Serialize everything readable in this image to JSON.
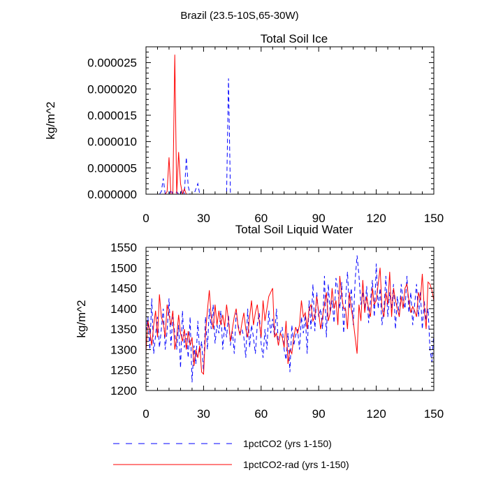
{
  "figure_title": "Brazil (23.5-10S,65-30W)",
  "colors": {
    "series_1": "#0000ff",
    "series_2": "#ff0000",
    "axis": "#000000"
  },
  "legend": {
    "placement": "bottom",
    "items": [
      {
        "label": "1pctCO2 (yrs 1-150)",
        "color": "#0000ff",
        "style": "dashed"
      },
      {
        "label": "1pctCO2-rad (yrs 1-150)",
        "color": "#ff0000",
        "style": "solid"
      }
    ]
  },
  "chart_data": [
    {
      "type": "line",
      "title": "Total Soil Ice",
      "xlabel": "",
      "ylabel": "kg/m^2",
      "xlim": [
        0,
        150
      ],
      "ylim": [
        0,
        2.8e-05
      ],
      "xticks": [
        0,
        30,
        60,
        90,
        120,
        150
      ],
      "xtick_labels": [
        "0",
        "30",
        "60",
        "90",
        "120",
        "150"
      ],
      "yticks": [
        0,
        5e-06,
        1e-05,
        1.5e-05,
        2e-05,
        2.5e-05
      ],
      "ytick_labels": [
        "0.000000",
        "0.000005",
        "0.000010",
        "0.000015",
        "0.000020",
        "0.000025"
      ],
      "grid": false,
      "series": [
        {
          "name": "1pctCO2 (yrs 1-150)",
          "style": "dashed",
          "color": "#0000ff",
          "x": [
            0,
            1,
            2,
            3,
            4,
            5,
            6,
            7,
            8,
            9,
            10,
            11,
            12,
            13,
            14,
            15,
            16,
            17,
            18,
            19,
            20,
            21,
            22,
            23,
            24,
            25,
            26,
            27,
            28,
            29,
            30,
            31,
            32,
            33,
            34,
            35,
            36,
            37,
            38,
            39,
            40,
            41,
            42,
            43,
            44,
            45,
            46,
            47,
            48,
            49,
            50,
            60,
            70,
            80,
            90,
            100,
            110,
            120,
            130,
            140,
            150
          ],
          "y": [
            0,
            0,
            0,
            0,
            0,
            0,
            0,
            0,
            5e-07,
            3e-06,
            0,
            0,
            0,
            8e-07,
            0,
            0,
            5e-07,
            0,
            0,
            1e-06,
            0,
            7e-06,
            1.5e-06,
            0,
            0,
            0,
            1e-06,
            2e-06,
            0,
            0,
            0,
            0,
            0,
            0,
            0,
            0,
            0,
            0,
            0,
            0,
            0,
            0,
            0,
            2.2e-05,
            0,
            0,
            0,
            0,
            0,
            0,
            0,
            0,
            0,
            0,
            0,
            0,
            0,
            0,
            0,
            0,
            0
          ]
        },
        {
          "name": "1pctCO2-rad (yrs 1-150)",
          "style": "solid",
          "color": "#ff0000",
          "x": [
            0,
            1,
            2,
            3,
            4,
            5,
            6,
            7,
            8,
            9,
            10,
            11,
            12,
            13,
            14,
            15,
            16,
            17,
            18,
            19,
            20,
            21,
            22,
            23,
            24,
            25,
            30,
            40,
            50,
            60,
            70,
            80,
            90,
            100,
            110,
            120,
            130,
            140,
            150
          ],
          "y": [
            0,
            0,
            0,
            0,
            0,
            0,
            0,
            0,
            0,
            0,
            0,
            5e-07,
            7e-06,
            0,
            0,
            2.65e-05,
            0,
            8e-06,
            2e-06,
            0,
            1e-06,
            0,
            0,
            0,
            0,
            0,
            0,
            0,
            0,
            0,
            0,
            0,
            0,
            0,
            0,
            0,
            0,
            0,
            0
          ]
        }
      ]
    },
    {
      "type": "line",
      "title": "Total Soil Liquid Water",
      "xlabel": "",
      "ylabel": "kg/m^2",
      "xlim": [
        0,
        150
      ],
      "ylim": [
        1200,
        1550
      ],
      "xticks": [
        0,
        30,
        60,
        90,
        120,
        150
      ],
      "xtick_labels": [
        "0",
        "30",
        "60",
        "90",
        "120",
        "150"
      ],
      "yticks": [
        1200,
        1250,
        1300,
        1350,
        1400,
        1450,
        1500,
        1550
      ],
      "ytick_labels": [
        "1200",
        "1250",
        "1300",
        "1350",
        "1400",
        "1450",
        "1500",
        "1550"
      ],
      "grid": false,
      "series": [
        {
          "name": "1pctCO2 (yrs 1-150)",
          "style": "dashed",
          "color": "#0000ff",
          "x": [
            0,
            1,
            2,
            3,
            4,
            5,
            6,
            7,
            8,
            9,
            10,
            11,
            12,
            13,
            14,
            15,
            16,
            17,
            18,
            19,
            20,
            21,
            22,
            23,
            24,
            25,
            26,
            27,
            28,
            29,
            30,
            31,
            32,
            33,
            34,
            35,
            36,
            37,
            38,
            39,
            40,
            41,
            42,
            43,
            44,
            45,
            46,
            47,
            48,
            49,
            50,
            51,
            52,
            53,
            54,
            55,
            56,
            57,
            58,
            59,
            60,
            61,
            62,
            63,
            64,
            65,
            66,
            67,
            68,
            69,
            70,
            71,
            72,
            73,
            74,
            75,
            76,
            77,
            78,
            79,
            80,
            81,
            82,
            83,
            84,
            85,
            86,
            87,
            88,
            89,
            90,
            91,
            92,
            93,
            94,
            95,
            96,
            97,
            98,
            99,
            100,
            101,
            102,
            103,
            104,
            105,
            106,
            107,
            108,
            109,
            110,
            111,
            112,
            113,
            114,
            115,
            116,
            117,
            118,
            119,
            120,
            121,
            122,
            123,
            124,
            125,
            126,
            127,
            128,
            129,
            130,
            131,
            132,
            133,
            134,
            135,
            136,
            137,
            138,
            139,
            140,
            141,
            142,
            143,
            144,
            145,
            146,
            147,
            148,
            149,
            150
          ],
          "y": [
            1345,
            1380,
            1300,
            1425,
            1290,
            1335,
            1380,
            1305,
            1350,
            1400,
            1300,
            1345,
            1425,
            1310,
            1380,
            1340,
            1300,
            1360,
            1255,
            1395,
            1305,
            1340,
            1280,
            1380,
            1220,
            1310,
            1265,
            1370,
            1290,
            1320,
            1245,
            1380,
            1300,
            1400,
            1350,
            1410,
            1315,
            1360,
            1340,
            1395,
            1300,
            1360,
            1330,
            1385,
            1310,
            1345,
            1290,
            1390,
            1360,
            1340,
            1350,
            1330,
            1280,
            1400,
            1305,
            1360,
            1330,
            1290,
            1360,
            1390,
            1315,
            1280,
            1350,
            1300,
            1395,
            1340,
            1375,
            1330,
            1400,
            1310,
            1340,
            1355,
            1300,
            1275,
            1340,
            1245,
            1360,
            1310,
            1335,
            1350,
            1300,
            1380,
            1340,
            1385,
            1290,
            1420,
            1350,
            1460,
            1345,
            1440,
            1380,
            1400,
            1350,
            1480,
            1330,
            1460,
            1390,
            1420,
            1365,
            1475,
            1445,
            1400,
            1465,
            1340,
            1420,
            1490,
            1400,
            1450,
            1360,
            1470,
            1530,
            1480,
            1410,
            1440,
            1395,
            1455,
            1365,
            1420,
            1470,
            1380,
            1510,
            1400,
            1450,
            1360,
            1400,
            1480,
            1380,
            1440,
            1400,
            1460,
            1350,
            1430,
            1380,
            1460,
            1420,
            1400,
            1480,
            1390,
            1440,
            1360,
            1410,
            1460,
            1380,
            1440,
            1350,
            1420,
            1370,
            1400,
            1300,
            1270,
            1340
          ]
        },
        {
          "name": "1pctCO2-rad (yrs 1-150)",
          "style": "solid",
          "color": "#ff0000",
          "x": [
            0,
            1,
            2,
            3,
            4,
            5,
            6,
            7,
            8,
            9,
            10,
            11,
            12,
            13,
            14,
            15,
            16,
            17,
            18,
            19,
            20,
            21,
            22,
            23,
            24,
            25,
            26,
            27,
            28,
            29,
            30,
            31,
            32,
            33,
            34,
            35,
            36,
            37,
            38,
            39,
            40,
            41,
            42,
            43,
            44,
            45,
            46,
            47,
            48,
            49,
            50,
            51,
            52,
            53,
            54,
            55,
            56,
            57,
            58,
            59,
            60,
            61,
            62,
            63,
            64,
            65,
            66,
            67,
            68,
            69,
            70,
            71,
            72,
            73,
            74,
            75,
            76,
            77,
            78,
            79,
            80,
            81,
            82,
            83,
            84,
            85,
            86,
            87,
            88,
            89,
            90,
            91,
            92,
            93,
            94,
            95,
            96,
            97,
            98,
            99,
            100,
            101,
            102,
            103,
            104,
            105,
            106,
            107,
            108,
            109,
            110,
            111,
            112,
            113,
            114,
            115,
            116,
            117,
            118,
            119,
            120,
            121,
            122,
            123,
            124,
            125,
            126,
            127,
            128,
            129,
            130,
            131,
            132,
            133,
            134,
            135,
            136,
            137,
            138,
            139,
            140,
            141,
            142,
            143,
            144,
            145,
            146,
            147,
            148,
            149,
            150
          ],
          "y": [
            1295,
            1370,
            1345,
            1310,
            1360,
            1395,
            1330,
            1435,
            1380,
            1365,
            1330,
            1410,
            1385,
            1360,
            1395,
            1300,
            1330,
            1385,
            1340,
            1320,
            1350,
            1300,
            1345,
            1310,
            1330,
            1260,
            1300,
            1280,
            1310,
            1245,
            1240,
            1340,
            1395,
            1445,
            1380,
            1350,
            1410,
            1360,
            1395,
            1360,
            1385,
            1355,
            1410,
            1370,
            1320,
            1350,
            1380,
            1400,
            1355,
            1335,
            1365,
            1390,
            1350,
            1330,
            1380,
            1420,
            1360,
            1390,
            1410,
            1370,
            1330,
            1420,
            1370,
            1400,
            1430,
            1440,
            1450,
            1330,
            1340,
            1310,
            1340,
            1330,
            1305,
            1370,
            1265,
            1300,
            1290,
            1330,
            1355,
            1340,
            1360,
            1420,
            1380,
            1390,
            1350,
            1400,
            1410,
            1370,
            1380,
            1430,
            1390,
            1350,
            1380,
            1410,
            1440,
            1370,
            1390,
            1450,
            1400,
            1420,
            1360,
            1480,
            1430,
            1400,
            1400,
            1350,
            1440,
            1400,
            1370,
            1330,
            1290,
            1410,
            1370,
            1470,
            1390,
            1430,
            1400,
            1380,
            1450,
            1410,
            1420,
            1460,
            1500,
            1400,
            1380,
            1440,
            1410,
            1490,
            1380,
            1450,
            1420,
            1400,
            1380,
            1430,
            1400,
            1450,
            1460,
            1420,
            1390,
            1405,
            1395,
            1380,
            1440,
            1420,
            1485,
            1400,
            1350,
            1465,
            1460,
            1445,
            1420
          ]
        }
      ]
    }
  ]
}
